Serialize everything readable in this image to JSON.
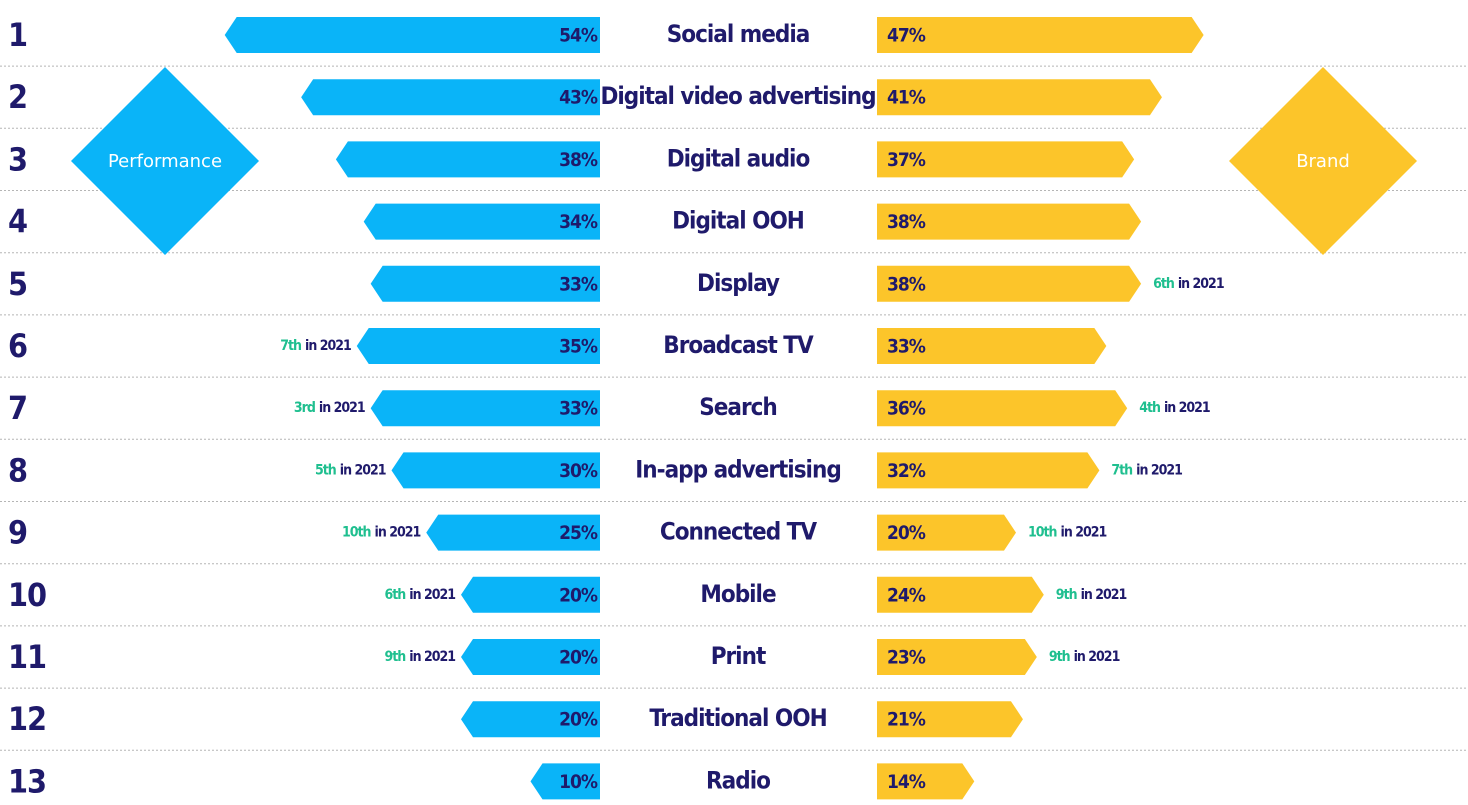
{
  "chart_data": {
    "type": "diverging-bar",
    "ranks": [
      1,
      2,
      3,
      4,
      5,
      6,
      7,
      8,
      9,
      10,
      11,
      12,
      13
    ],
    "categories": [
      "Social media",
      "Digital video advertising",
      "Digital audio",
      "Digital OOH",
      "Display",
      "Broadcast TV",
      "Search",
      "In-app advertising",
      "Connected TV",
      "Mobile",
      "Print",
      "Traditional OOH",
      "Radio"
    ],
    "series": [
      {
        "name": "Performance",
        "color": "#0ab4f8",
        "values": [
          54,
          43,
          38,
          34,
          33,
          35,
          33,
          30,
          25,
          20,
          20,
          20,
          10
        ],
        "value_labels": [
          "54%",
          "43%",
          "38%",
          "34%",
          "33%",
          "35%",
          "33%",
          "30%",
          "25%",
          "20%",
          "20%",
          "20%",
          "10%"
        ],
        "notes": [
          null,
          null,
          null,
          null,
          null,
          "7th",
          "3rd",
          "5th",
          "10th",
          "6th",
          "9th",
          null,
          null
        ]
      },
      {
        "name": "Brand",
        "color": "#fcc52a",
        "values": [
          47,
          41,
          37,
          38,
          38,
          33,
          36,
          32,
          20,
          24,
          23,
          21,
          14
        ],
        "value_labels": [
          "47%",
          "41%",
          "37%",
          "38%",
          "38%",
          "33%",
          "36%",
          "32%",
          "20%",
          "24%",
          "23%",
          "21%",
          "14%"
        ],
        "notes": [
          null,
          null,
          null,
          null,
          "6th",
          null,
          "4th",
          "7th",
          "10th",
          "9th",
          "9th",
          null,
          null
        ]
      }
    ],
    "note_suffix": "in 2021",
    "note_color": "#1fbf8f"
  }
}
